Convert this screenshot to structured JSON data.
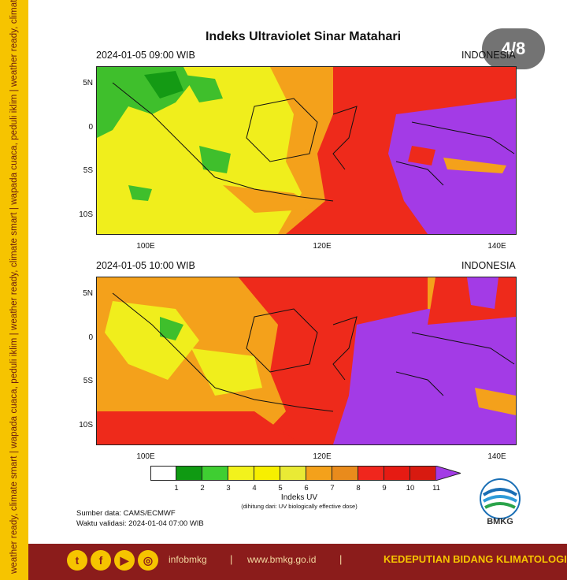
{
  "side_strip": {
    "text": "weather ready, climate smart | wapada cuaca, peduli iklim | weather ready, climate smart | wapada cuaca, peduli iklim | weather ready, climate smart | wapada cuaca, peduli iklim"
  },
  "title": "Indeks Ultraviolet Sinar Matahari",
  "slide_counter": "4/8",
  "panels": [
    {
      "datetime": "2024-01-05  09:00 WIB",
      "region": "INDONESIA"
    },
    {
      "datetime": "2024-01-05  10:00 WIB",
      "region": "INDONESIA"
    }
  ],
  "axes": {
    "lat_labels": [
      "5N",
      "0",
      "5S",
      "10S"
    ],
    "lon_labels": [
      "100E",
      "120E",
      "140E"
    ]
  },
  "legend": {
    "title": "Indeks UV",
    "subtitle": "(dihitung dari: UV biologically effective dose)",
    "ticks": [
      "1",
      "2",
      "3",
      "4",
      "5",
      "6",
      "7",
      "8",
      "9",
      "10",
      "11"
    ],
    "colors": [
      "#ffffff",
      "#0f9a12",
      "#3fce32",
      "#f2f21c",
      "#f7ef00",
      "#e9ea35",
      "#f4a11b",
      "#e98b1c",
      "#f0261d",
      "#e61b13",
      "#d81a10",
      "#a33be6"
    ]
  },
  "source": {
    "data": "Sumber data: CAMS/ECMWF",
    "validity": "Waktu validasi: 2024-01-04 07:00 WIB"
  },
  "logo_text": "BMKG",
  "footer": {
    "instagram": "infobmkg",
    "website": "www.bmkg.go.id",
    "separator": "|",
    "department": "KEDEPUTIAN BIDANG KLIMATOLOGI"
  }
}
